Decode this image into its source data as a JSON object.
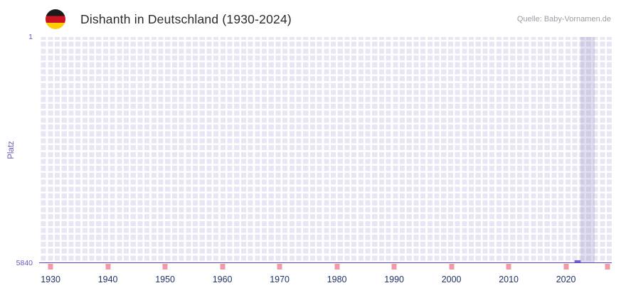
{
  "header": {
    "title": "Dishanth in Deutschland (1930-2024)",
    "source": "Quelle: Baby-Vornamen.de"
  },
  "chart_data": {
    "type": "scatter",
    "title": "Dishanth in Deutschland (1930-2024)",
    "xlabel": "",
    "ylabel": "Platz",
    "y_axis": {
      "min": 1,
      "max": 5840,
      "inverted": true,
      "top_label": "1",
      "bottom_label": "5840"
    },
    "x_axis": {
      "min": 1928,
      "max": 2028,
      "ticks": [
        1930,
        1940,
        1950,
        1960,
        1970,
        1980,
        1990,
        2000,
        2010,
        2020
      ]
    },
    "points": [
      {
        "year": 2022,
        "rank": 5840
      }
    ],
    "highlight_band": {
      "from": 2022.5,
      "to": 2025
    },
    "axis_mark_years": [
      1930,
      1940,
      1950,
      1960,
      1970,
      1980,
      1990,
      2000,
      2010,
      2020,
      2027.3
    ],
    "grid": "fine white grid on lavender background",
    "legend": "none",
    "colors": {
      "plot_background": "#e9e6f4",
      "grid_line": "#ffffff",
      "axis_line": "#5b3fd6",
      "marker": "#6f5ecb",
      "highlight_band": "#948abe",
      "axis_mark_pink": "#f09aa4",
      "y_text_purple": "#6a58bb",
      "x_text_navy": "#1f3366",
      "title_text": "#2b2b2b",
      "source_text": "#9a9fa5"
    }
  }
}
